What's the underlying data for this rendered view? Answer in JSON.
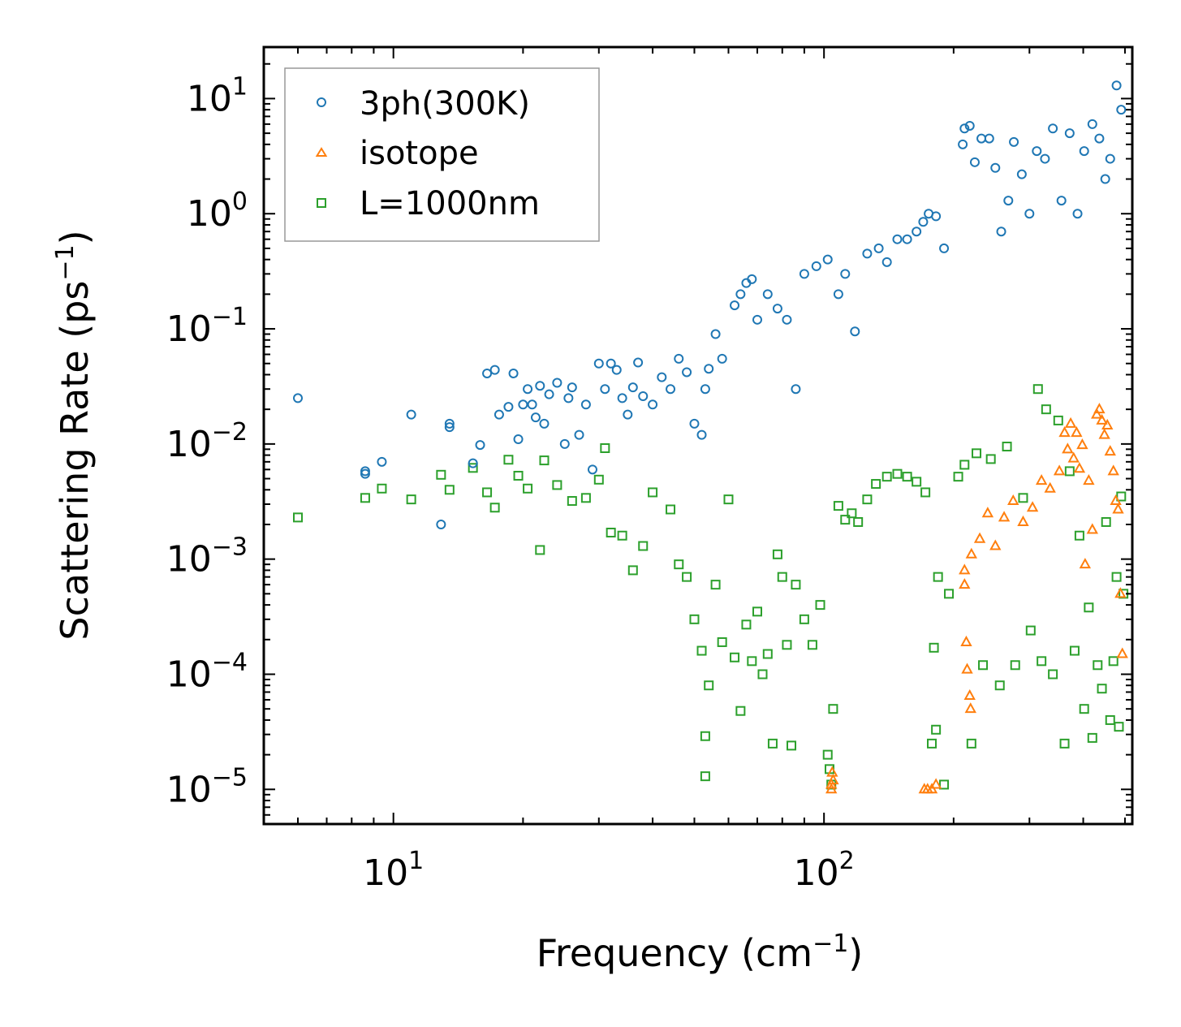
{
  "chart_data": {
    "type": "scatter",
    "title": "",
    "xlabel": "Frequency (cm",
    "xlabel_sup": "−1",
    "xlabel_end": ")",
    "ylabel": "Scattering Rate (ps",
    "ylabel_sup": "−1",
    "ylabel_end": ")",
    "xscale": "log",
    "yscale": "log",
    "xlim": [
      5,
      520
    ],
    "ylim": [
      5e-06,
      28
    ],
    "x_ticks": [
      {
        "base": "10",
        "exp": "1",
        "value": 10
      },
      {
        "base": "10",
        "exp": "2",
        "value": 100
      }
    ],
    "y_ticks": [
      {
        "base": "10",
        "exp": "1",
        "value": 10
      },
      {
        "base": "10",
        "exp": "0",
        "value": 1
      },
      {
        "base": "10",
        "exp": "−1",
        "value": 0.1
      },
      {
        "base": "10",
        "exp": "−2",
        "value": 0.01
      },
      {
        "base": "10",
        "exp": "−3",
        "value": 0.001
      },
      {
        "base": "10",
        "exp": "−4",
        "value": 0.0001
      },
      {
        "base": "10",
        "exp": "−5",
        "value": 1e-05
      }
    ],
    "legend_position": "top-left",
    "series": [
      {
        "name": "3ph(300K)",
        "marker": "circle",
        "color": "#1f77b4",
        "points": [
          [
            6.0,
            0.025
          ],
          [
            8.6,
            0.0058
          ],
          [
            8.6,
            0.0055
          ],
          [
            9.4,
            0.007
          ],
          [
            11.0,
            0.018
          ],
          [
            12.9,
            0.002
          ],
          [
            13.5,
            0.014
          ],
          [
            13.5,
            0.015
          ],
          [
            15.3,
            0.0068
          ],
          [
            15.9,
            0.0098
          ],
          [
            16.5,
            0.041
          ],
          [
            17.2,
            0.044
          ],
          [
            17.6,
            0.018
          ],
          [
            18.5,
            0.021
          ],
          [
            19.0,
            0.041
          ],
          [
            19.5,
            0.011
          ],
          [
            20.0,
            0.022
          ],
          [
            20.5,
            0.03
          ],
          [
            21.0,
            0.022
          ],
          [
            21.4,
            0.017
          ],
          [
            21.9,
            0.032
          ],
          [
            22.4,
            0.015
          ],
          [
            23.0,
            0.027
          ],
          [
            24.0,
            0.034
          ],
          [
            25.0,
            0.01
          ],
          [
            25.5,
            0.025
          ],
          [
            26.0,
            0.031
          ],
          [
            27.0,
            0.012
          ],
          [
            28.0,
            0.022
          ],
          [
            29.0,
            0.006
          ],
          [
            30.0,
            0.05
          ],
          [
            31.0,
            0.03
          ],
          [
            32.0,
            0.05
          ],
          [
            33.0,
            0.044
          ],
          [
            34.0,
            0.025
          ],
          [
            35.0,
            0.018
          ],
          [
            36.0,
            0.031
          ],
          [
            37.0,
            0.051
          ],
          [
            38.0,
            0.026
          ],
          [
            40.0,
            0.022
          ],
          [
            42.0,
            0.038
          ],
          [
            44.0,
            0.03
          ],
          [
            46.0,
            0.055
          ],
          [
            48.0,
            0.042
          ],
          [
            50.0,
            0.015
          ],
          [
            52.0,
            0.012
          ],
          [
            53.0,
            0.03
          ],
          [
            54.0,
            0.045
          ],
          [
            56.0,
            0.09
          ],
          [
            58.0,
            0.055
          ],
          [
            62.0,
            0.16
          ],
          [
            64.0,
            0.2
          ],
          [
            66.0,
            0.25
          ],
          [
            68.0,
            0.27
          ],
          [
            70.0,
            0.12
          ],
          [
            74.0,
            0.2
          ],
          [
            78.0,
            0.15
          ],
          [
            82.0,
            0.12
          ],
          [
            86.0,
            0.03
          ],
          [
            90.0,
            0.3
          ],
          [
            96.0,
            0.35
          ],
          [
            102.0,
            0.4
          ],
          [
            108.0,
            0.2
          ],
          [
            112.0,
            0.3
          ],
          [
            118.0,
            0.095
          ],
          [
            126.0,
            0.45
          ],
          [
            134.0,
            0.5
          ],
          [
            140.0,
            0.38
          ],
          [
            148.0,
            0.6
          ],
          [
            156.0,
            0.6
          ],
          [
            164.0,
            0.7
          ],
          [
            170.0,
            0.85
          ],
          [
            175.0,
            1.0
          ],
          [
            182.0,
            0.95
          ],
          [
            190.0,
            0.5
          ],
          [
            210.0,
            4.0
          ],
          [
            212.0,
            5.5
          ],
          [
            218.0,
            5.8
          ],
          [
            224.0,
            2.8
          ],
          [
            232.0,
            4.5
          ],
          [
            242.0,
            4.5
          ],
          [
            250.0,
            2.5
          ],
          [
            258.0,
            0.7
          ],
          [
            268.0,
            1.3
          ],
          [
            276.0,
            4.2
          ],
          [
            288.0,
            2.2
          ],
          [
            300.0,
            1.0
          ],
          [
            312.0,
            3.5
          ],
          [
            326.0,
            3.0
          ],
          [
            340.0,
            5.5
          ],
          [
            356.0,
            1.3
          ],
          [
            372.0,
            5.0
          ],
          [
            388.0,
            1.0
          ],
          [
            402.0,
            3.5
          ],
          [
            420.0,
            6.0
          ],
          [
            436.0,
            4.5
          ],
          [
            450.0,
            2.0
          ],
          [
            462.0,
            3.0
          ],
          [
            478.0,
            13.0
          ],
          [
            490.0,
            8.0
          ]
        ]
      },
      {
        "name": "isotope",
        "marker": "triangle",
        "color": "#ff7f0e",
        "points": [
          [
            104.0,
            1e-05
          ],
          [
            104.0,
            1.1e-05
          ],
          [
            105.0,
            1.2e-05
          ],
          [
            104.5,
            1.4e-05
          ],
          [
            171.0,
            1e-05
          ],
          [
            174.0,
            1e-05
          ],
          [
            178.0,
            1e-05
          ],
          [
            182.0,
            1.1e-05
          ],
          [
            212.0,
            0.0006
          ],
          [
            212.0,
            0.0008
          ],
          [
            214.0,
            0.00019
          ],
          [
            215.0,
            0.00011
          ],
          [
            218.0,
            6.5e-05
          ],
          [
            219.0,
            5e-05
          ],
          [
            220.0,
            0.0011
          ],
          [
            230.0,
            0.0015
          ],
          [
            240.0,
            0.0025
          ],
          [
            250.0,
            0.0013
          ],
          [
            262.0,
            0.0023
          ],
          [
            275.0,
            0.0032
          ],
          [
            290.0,
            0.0021
          ],
          [
            305.0,
            0.0028
          ],
          [
            320.0,
            0.0048
          ],
          [
            335.0,
            0.0041
          ],
          [
            352.0,
            0.0058
          ],
          [
            362.0,
            0.0125
          ],
          [
            368.0,
            0.009
          ],
          [
            374.0,
            0.015
          ],
          [
            380.0,
            0.0075
          ],
          [
            386.0,
            0.0125
          ],
          [
            392.0,
            0.0061
          ],
          [
            398.0,
            0.0098
          ],
          [
            404.0,
            0.0009
          ],
          [
            412.0,
            0.0048
          ],
          [
            420.0,
            0.0018
          ],
          [
            430.0,
            0.018
          ],
          [
            436.0,
            0.02
          ],
          [
            442.0,
            0.016
          ],
          [
            448.0,
            0.012
          ],
          [
            455.0,
            0.0145
          ],
          [
            462.0,
            0.0086
          ],
          [
            470.0,
            0.0058
          ],
          [
            476.0,
            0.0032
          ],
          [
            482.0,
            0.0027
          ],
          [
            488.0,
            0.0005
          ],
          [
            493.0,
            0.00015
          ]
        ]
      },
      {
        "name": "L=1000nm",
        "marker": "square",
        "color": "#2ca02c",
        "points": [
          [
            6.0,
            0.0023
          ],
          [
            8.6,
            0.0034
          ],
          [
            9.4,
            0.0041
          ],
          [
            11.0,
            0.0033
          ],
          [
            12.9,
            0.0054
          ],
          [
            13.5,
            0.004
          ],
          [
            15.3,
            0.0062
          ],
          [
            16.5,
            0.0038
          ],
          [
            17.2,
            0.0028
          ],
          [
            18.5,
            0.0073
          ],
          [
            19.5,
            0.0053
          ],
          [
            20.5,
            0.0041
          ],
          [
            21.9,
            0.0012
          ],
          [
            22.4,
            0.0072
          ],
          [
            24.0,
            0.0044
          ],
          [
            26.0,
            0.0032
          ],
          [
            28.0,
            0.0034
          ],
          [
            30.0,
            0.0049
          ],
          [
            31.0,
            0.0092
          ],
          [
            32.0,
            0.0017
          ],
          [
            34.0,
            0.0016
          ],
          [
            36.0,
            0.0008
          ],
          [
            38.0,
            0.0013
          ],
          [
            40.0,
            0.0038
          ],
          [
            44.0,
            0.0027
          ],
          [
            46.0,
            0.0009
          ],
          [
            48.0,
            0.0007
          ],
          [
            50.0,
            0.0003
          ],
          [
            52.0,
            0.00016
          ],
          [
            53.0,
            2.9e-05
          ],
          [
            53.0,
            1.3e-05
          ],
          [
            54.0,
            8e-05
          ],
          [
            56.0,
            0.0006
          ],
          [
            58.0,
            0.00019
          ],
          [
            60.0,
            0.0033
          ],
          [
            62.0,
            0.00014
          ],
          [
            64.0,
            4.8e-05
          ],
          [
            66.0,
            0.00027
          ],
          [
            68.0,
            0.00013
          ],
          [
            70.0,
            0.00035
          ],
          [
            72.0,
            0.0001
          ],
          [
            74.0,
            0.00015
          ],
          [
            76.0,
            2.5e-05
          ],
          [
            78.0,
            0.0011
          ],
          [
            80.0,
            0.0007
          ],
          [
            82.0,
            0.00018
          ],
          [
            84.0,
            2.4e-05
          ],
          [
            86.0,
            0.0006
          ],
          [
            90.0,
            0.0003
          ],
          [
            94.0,
            0.00018
          ],
          [
            98.0,
            0.0004
          ],
          [
            102.0,
            2e-05
          ],
          [
            103.0,
            1.5e-05
          ],
          [
            104.0,
            1.1e-05
          ],
          [
            105.0,
            5e-05
          ],
          [
            108.0,
            0.0029
          ],
          [
            112.0,
            0.0022
          ],
          [
            116.0,
            0.0025
          ],
          [
            120.0,
            0.0021
          ],
          [
            126.0,
            0.0033
          ],
          [
            132.0,
            0.0045
          ],
          [
            140.0,
            0.0052
          ],
          [
            148.0,
            0.0055
          ],
          [
            156.0,
            0.0052
          ],
          [
            164.0,
            0.0047
          ],
          [
            172.0,
            0.0038
          ],
          [
            178.0,
            2.5e-05
          ],
          [
            180.0,
            0.00017
          ],
          [
            182.0,
            3.3e-05
          ],
          [
            184.0,
            0.0007
          ],
          [
            190.0,
            1.1e-05
          ],
          [
            195.0,
            0.0005
          ],
          [
            205.0,
            0.0052
          ],
          [
            212.0,
            0.0066
          ],
          [
            220.0,
            2.5e-05
          ],
          [
            226.0,
            0.0083
          ],
          [
            234.0,
            0.00012
          ],
          [
            244.0,
            0.0074
          ],
          [
            256.0,
            8e-05
          ],
          [
            266.0,
            0.0095
          ],
          [
            278.0,
            0.00012
          ],
          [
            290.0,
            0.0034
          ],
          [
            302.0,
            0.00024
          ],
          [
            314.0,
            0.03
          ],
          [
            320.0,
            0.00013
          ],
          [
            328.0,
            0.02
          ],
          [
            340.0,
            0.0001
          ],
          [
            350.0,
            0.016
          ],
          [
            362.0,
            2.5e-05
          ],
          [
            372.0,
            0.0058
          ],
          [
            382.0,
            0.00016
          ],
          [
            392.0,
            0.0016
          ],
          [
            402.0,
            5e-05
          ],
          [
            412.0,
            0.00038
          ],
          [
            420.0,
            2.8e-05
          ],
          [
            432.0,
            0.00012
          ],
          [
            442.0,
            7.5e-05
          ],
          [
            452.0,
            0.0021
          ],
          [
            462.0,
            4e-05
          ],
          [
            470.0,
            0.00013
          ],
          [
            478.0,
            0.0007
          ],
          [
            484.0,
            3.5e-05
          ],
          [
            490.0,
            0.0035
          ],
          [
            496.0,
            0.0005
          ]
        ]
      }
    ]
  }
}
